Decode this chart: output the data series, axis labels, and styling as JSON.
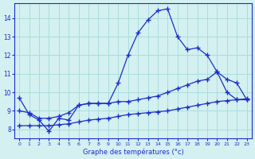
{
  "xlabel": "Graphe des températures (°c)",
  "background_color": "#d4f0f0",
  "grid_color": "#aadddd",
  "line_color": "#1a2ecc",
  "line1": [
    9.7,
    8.8,
    8.5,
    7.9,
    8.6,
    8.5,
    9.3,
    9.4,
    9.4,
    9.4,
    10.5,
    12.0,
    13.2,
    13.9,
    14.4,
    14.5,
    13.0,
    12.3,
    12.4,
    12.0,
    11.1,
    10.0,
    9.6,
    9.6
  ],
  "line2": [
    9.0,
    8.9,
    8.6,
    8.6,
    8.7,
    8.9,
    9.3,
    9.4,
    9.4,
    9.4,
    9.5,
    9.5,
    9.6,
    9.7,
    9.8,
    10.0,
    10.2,
    10.4,
    10.6,
    10.7,
    11.1,
    10.7,
    10.5,
    9.6
  ],
  "line3": [
    8.2,
    8.2,
    8.2,
    8.2,
    8.25,
    8.3,
    8.4,
    8.5,
    8.55,
    8.6,
    8.7,
    8.8,
    8.85,
    8.9,
    8.95,
    9.0,
    9.1,
    9.2,
    9.3,
    9.4,
    9.5,
    9.55,
    9.6,
    9.65
  ],
  "x": [
    0,
    1,
    2,
    3,
    4,
    5,
    6,
    7,
    8,
    9,
    10,
    11,
    12,
    13,
    14,
    15,
    16,
    17,
    18,
    19,
    20,
    21,
    22,
    23
  ],
  "x_ticks": [
    0,
    1,
    2,
    3,
    4,
    5,
    6,
    7,
    8,
    9,
    10,
    11,
    12,
    13,
    14,
    15,
    16,
    17,
    18,
    19,
    20,
    21,
    22,
    23
  ],
  "ylim": [
    7.5,
    14.8
  ],
  "yticks": [
    8,
    9,
    10,
    11,
    12,
    13,
    14
  ]
}
